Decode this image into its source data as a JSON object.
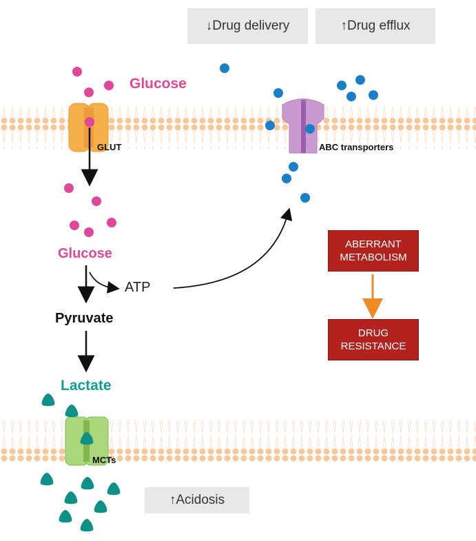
{
  "top_labels": {
    "drug_delivery": "↓Drug delivery",
    "drug_efflux": "↑Drug efflux"
  },
  "labels": {
    "glucose_out": "Glucose",
    "glut": "GLUT",
    "glucose_in": "Glucose",
    "atp": "ATP",
    "pyruvate": "Pyruvate",
    "lactate": "Lactate",
    "abc": "ABC transporters",
    "mcts": "MCTs",
    "acidosis": "↑Acidosis"
  },
  "boxes": {
    "aberrant": "ABERRANT METABOLISM",
    "resistance": "DRUG RESISTANCE"
  },
  "colors": {
    "glucose": "#e0469a",
    "drug": "#1a7fc8",
    "lactate": "#0f9187",
    "membrane": "#f8c79a",
    "glut": "#f6b04a",
    "abc": "#c99ad0",
    "mct": "#a9d77a",
    "box_red": "#b3221d",
    "arrow_orange": "#f08a24"
  }
}
